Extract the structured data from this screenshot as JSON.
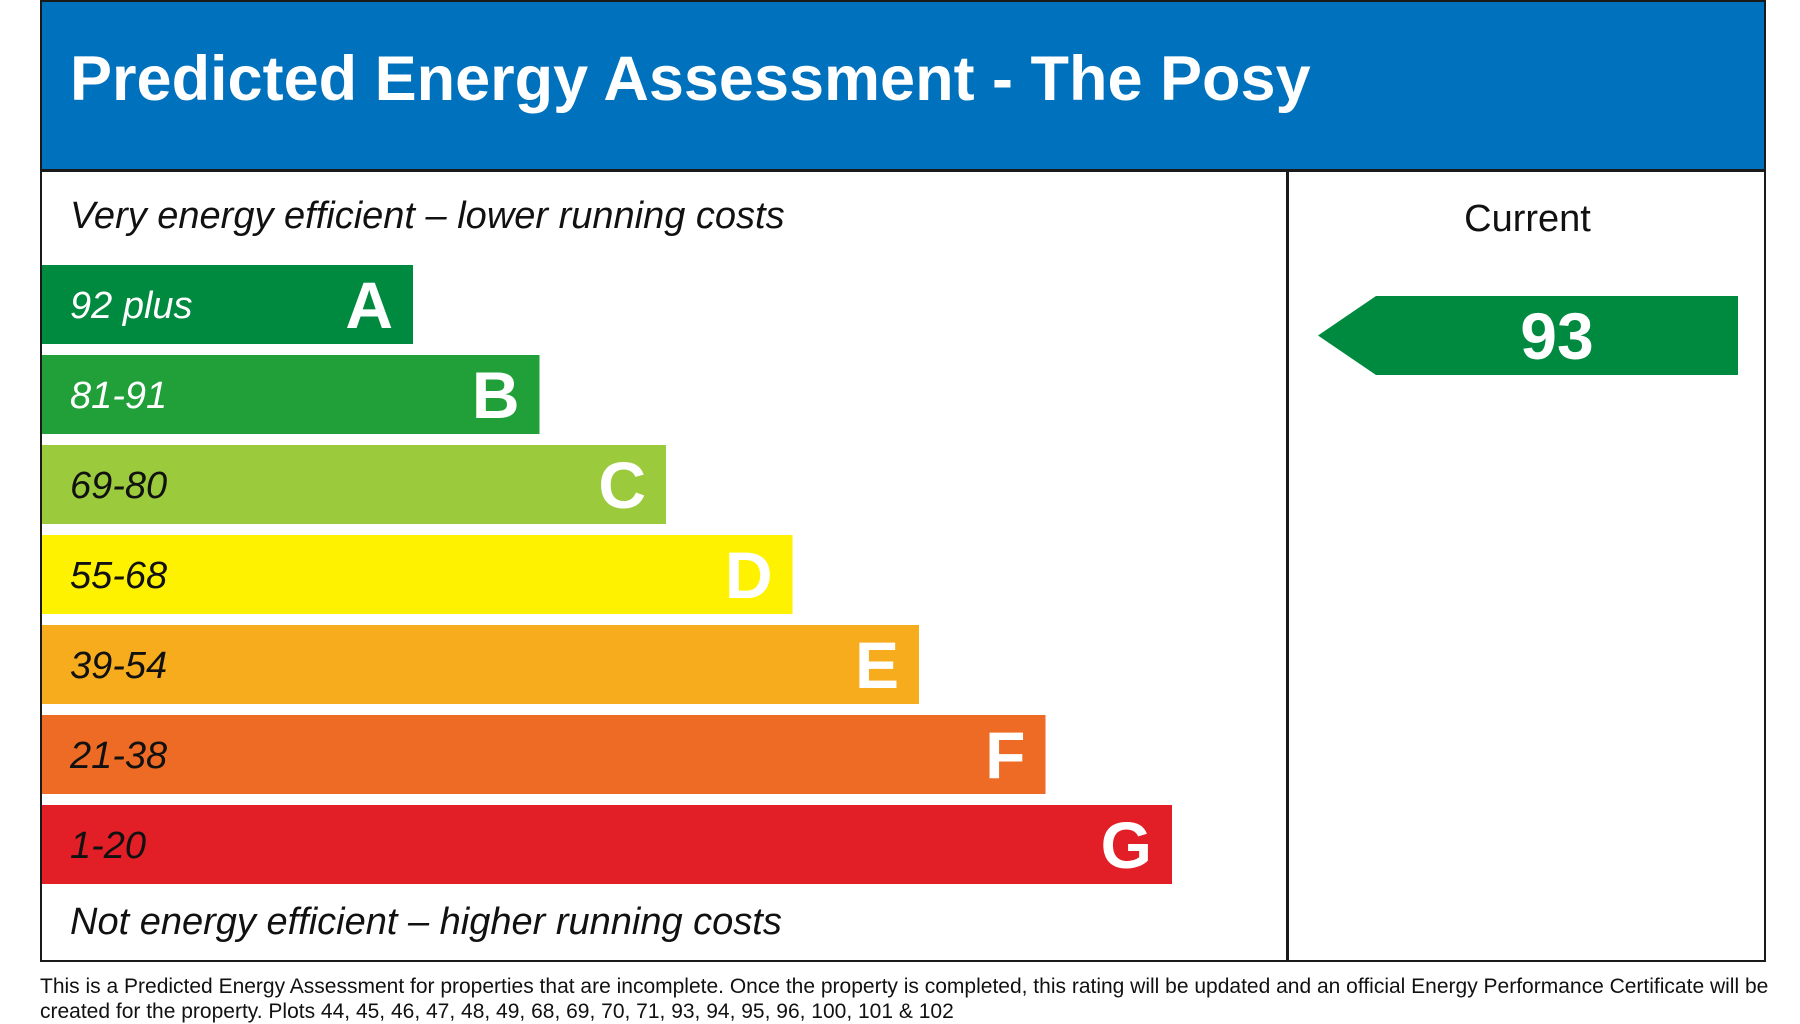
{
  "header": {
    "title": "Predicted Energy Assessment - The Posy"
  },
  "chart_data": {
    "type": "bar",
    "top_note": "Very energy efficient – lower running costs",
    "bottom_note": "Not energy efficient – higher running costs",
    "current_label": "Current",
    "bands": [
      {
        "range": "92 plus",
        "letter": "A",
        "color": "#008a3f",
        "text_color": "#ffffff"
      },
      {
        "range": "81-91",
        "letter": "B",
        "color": "#21a03a",
        "text_color": "#ffffff"
      },
      {
        "range": "69-80",
        "letter": "C",
        "color": "#9bcb3c",
        "text_color": "#111111"
      },
      {
        "range": "55-68",
        "letter": "D",
        "color": "#fff200",
        "text_color": "#111111"
      },
      {
        "range": "39-54",
        "letter": "E",
        "color": "#f7ac1e",
        "text_color": "#111111"
      },
      {
        "range": "21-38",
        "letter": "F",
        "color": "#ed6b24",
        "text_color": "#111111"
      },
      {
        "range": "1-20",
        "letter": "G",
        "color": "#e21e26",
        "text_color": "#111111"
      }
    ],
    "current": {
      "value": "93",
      "band": "A",
      "color": "#008a3f"
    }
  },
  "footnote": "This is a Predicted Energy Assessment for properties that are incomplete. Once the property is completed, this rating will be updated and an official Energy Performance Certificate will be created for the property. Plots 44, 45, 46, 47, 48, 49, 68, 69, 70, 71, 93, 94, 95, 96, 100, 101 & 102"
}
